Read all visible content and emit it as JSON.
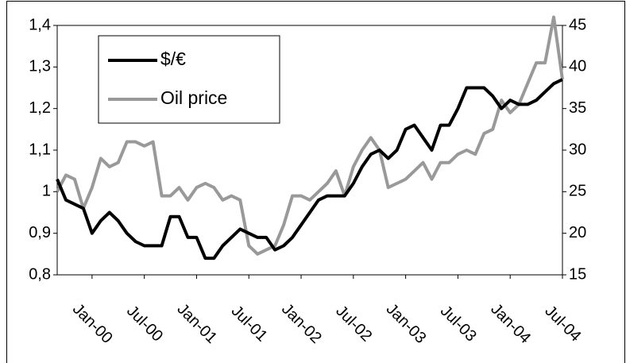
{
  "chart_data": {
    "type": "line",
    "categories": [
      null,
      null,
      null,
      null,
      "Jan-00",
      null,
      null,
      null,
      null,
      null,
      "Jul-00",
      null,
      null,
      null,
      null,
      null,
      "Jan-01",
      null,
      null,
      null,
      null,
      null,
      "Jul-01",
      null,
      null,
      null,
      null,
      null,
      "Jan-02",
      null,
      null,
      null,
      null,
      null,
      "Jul-02",
      null,
      null,
      null,
      null,
      null,
      "Jan-03",
      null,
      null,
      null,
      null,
      null,
      "Jul-03",
      null,
      null,
      null,
      null,
      null,
      "Jan-04",
      null,
      null,
      null,
      null,
      null,
      "Jul-04"
    ],
    "series": [
      {
        "name": "$/€",
        "color": "#000000",
        "values": [
          1.03,
          0.98,
          0.97,
          0.96,
          0.9,
          0.93,
          0.95,
          0.93,
          0.9,
          0.88,
          0.87,
          0.87,
          0.87,
          0.94,
          0.94,
          0.89,
          0.89,
          0.84,
          0.84,
          0.87,
          0.89,
          0.91,
          0.9,
          0.89,
          0.89,
          0.86,
          0.87,
          0.89,
          0.92,
          0.95,
          0.98,
          0.99,
          0.99,
          0.99,
          1.02,
          1.06,
          1.09,
          1.1,
          1.08,
          1.1,
          1.15,
          1.16,
          1.13,
          1.1,
          1.16,
          1.16,
          1.2,
          1.25,
          1.25,
          1.25,
          1.23,
          1.2,
          1.22,
          1.21,
          1.21,
          1.22,
          1.24,
          1.26,
          1.27
        ]
      },
      {
        "name": "Oil price",
        "color": "#999999",
        "axis": "y2",
        "values": [
          25,
          27,
          26.5,
          23,
          25.5,
          29,
          28,
          28.5,
          31,
          31,
          30.5,
          31,
          24.5,
          24.5,
          25.5,
          24,
          25.5,
          26,
          25.5,
          24,
          24.5,
          24,
          18.5,
          17.5,
          18,
          18.5,
          21,
          24.5,
          24.5,
          24,
          25,
          26,
          27.5,
          24.5,
          28,
          30,
          31.5,
          30,
          25.5,
          26,
          26.5,
          27.5,
          28.5,
          26.5,
          28.5,
          28.5,
          29.5,
          30,
          29.5,
          32,
          32.5,
          36,
          34.5,
          35.5,
          38,
          40.5,
          40.5,
          46,
          38.5
        ]
      }
    ],
    "ylim": [
      0.8,
      1.4
    ],
    "yticks": [
      {
        "value": 0.8,
        "label": "0,8"
      },
      {
        "value": 0.9,
        "label": "0,9"
      },
      1,
      {
        "value": 1.1,
        "label": "1,1"
      },
      {
        "value": 1.2,
        "label": "1,2"
      },
      {
        "value": 1.3,
        "label": "1,3"
      },
      {
        "value": 1.4,
        "label": "1,4"
      }
    ],
    "y2lim": [
      15,
      45
    ],
    "y2ticks": [
      15,
      20,
      25,
      30,
      35,
      40,
      45
    ],
    "legend": "upper left"
  }
}
